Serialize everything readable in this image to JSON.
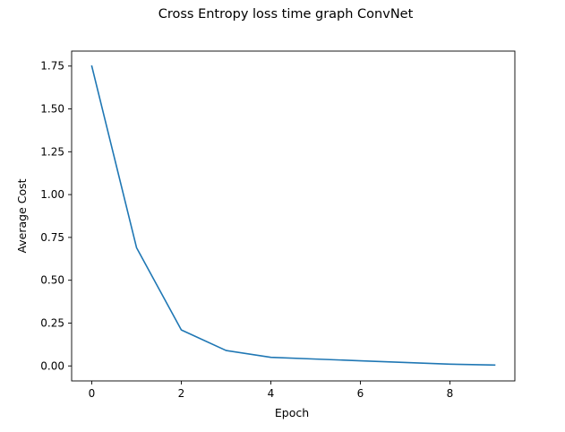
{
  "chart_data": {
    "type": "line",
    "title": "Cross Entropy loss time graph ConvNet",
    "xlabel": "Epoch",
    "ylabel": "Average Cost",
    "xlim": [
      -0.45,
      9.45
    ],
    "ylim": [
      -0.0875,
      1.8375
    ],
    "xticks": [
      0,
      2,
      4,
      6,
      8
    ],
    "xtick_labels": [
      "0",
      "2",
      "4",
      "6",
      "8"
    ],
    "yticks": [
      0.0,
      0.25,
      0.5,
      0.75,
      1.0,
      1.25,
      1.5,
      1.75
    ],
    "ytick_labels": [
      "0.00",
      "0.25",
      "0.50",
      "0.75",
      "1.00",
      "1.25",
      "1.50",
      "1.75"
    ],
    "grid": false,
    "series": [
      {
        "color": "#1f77b4",
        "x": [
          0,
          1,
          2,
          3,
          4,
          5,
          6,
          7,
          8,
          9
        ],
        "values": [
          1.75,
          0.69,
          0.21,
          0.09,
          0.05,
          0.04,
          0.03,
          0.02,
          0.01,
          0.005
        ]
      }
    ]
  }
}
